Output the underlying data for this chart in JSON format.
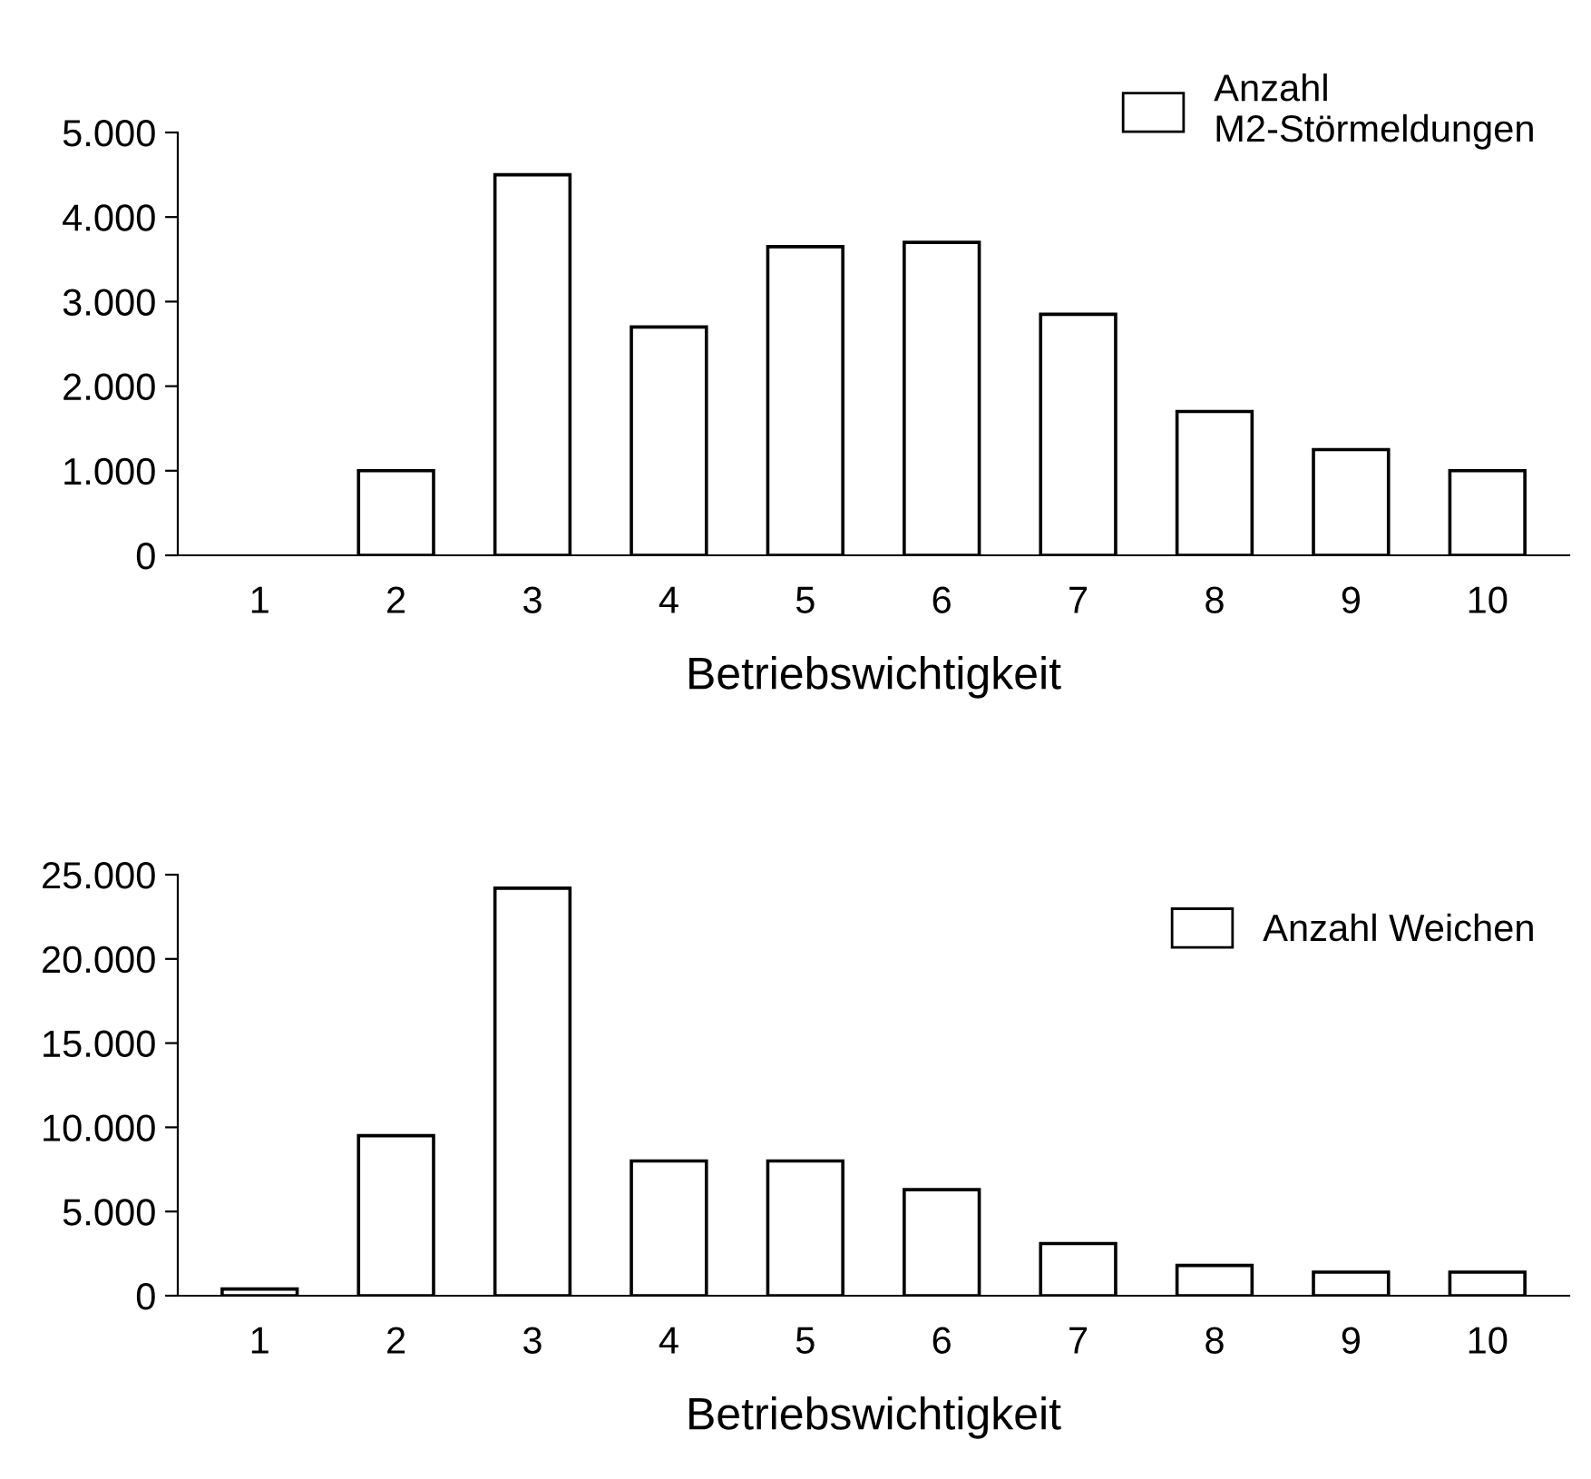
{
  "chart_data": [
    {
      "type": "bar",
      "xlabel": "Betriebswichtigkeit",
      "categories": [
        "1",
        "2",
        "3",
        "4",
        "5",
        "6",
        "7",
        "8",
        "9",
        "10"
      ],
      "series": [
        {
          "name": "Anzahl\nM2-Störmeldungen",
          "color": "#ffffff",
          "values": [
            0,
            1000,
            4500,
            2700,
            3650,
            3700,
            2850,
            1700,
            1250,
            1000
          ]
        }
      ],
      "ylim": [
        0,
        5000
      ],
      "yticks": [
        {
          "value": 0,
          "label": "0"
        },
        {
          "value": 1000,
          "label": "1.000"
        },
        {
          "value": 2000,
          "label": "2.000"
        },
        {
          "value": 3000,
          "label": "3.000"
        },
        {
          "value": 4000,
          "label": "4.000"
        },
        {
          "value": 5000,
          "label": "5.000"
        }
      ],
      "grid": false,
      "legend": "top right"
    },
    {
      "type": "bar",
      "xlabel": "Betriebswichtigkeit",
      "categories": [
        "1",
        "2",
        "3",
        "4",
        "5",
        "6",
        "7",
        "8",
        "9",
        "10"
      ],
      "series": [
        {
          "name": "Anzahl Weichen",
          "color": "#ffffff",
          "values": [
            400,
            9500,
            24200,
            8000,
            8000,
            6300,
            3100,
            1800,
            1400,
            1400
          ]
        }
      ],
      "ylim": [
        0,
        25000
      ],
      "yticks": [
        {
          "value": 0,
          "label": "0"
        },
        {
          "value": 5000,
          "label": "5.000"
        },
        {
          "value": 10000,
          "label": "10.000"
        },
        {
          "value": 15000,
          "label": "15.000"
        },
        {
          "value": 20000,
          "label": "20.000"
        },
        {
          "value": 25000,
          "label": "25.000"
        }
      ],
      "grid": false,
      "legend": "top right"
    }
  ]
}
